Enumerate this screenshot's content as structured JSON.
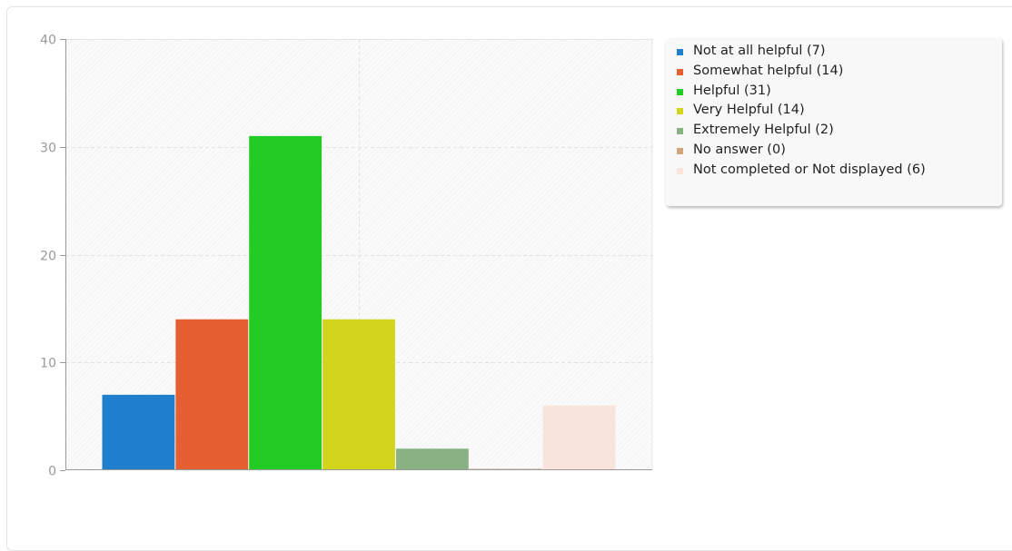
{
  "chart_data": {
    "type": "bar",
    "categories": [
      "Not at all helpful",
      "Somewhat helpful",
      "Helpful",
      "Very Helpful",
      "Extremely Helpful",
      "No answer",
      "Not completed or Not displayed"
    ],
    "values": [
      7,
      14,
      31,
      14,
      2,
      0,
      6
    ],
    "colors": [
      "#1f7fcc",
      "#e65f32",
      "#22cc22",
      "#d3d51c",
      "#88b283",
      "#d0a57d",
      "#f9e4dd"
    ],
    "legend_labels": [
      "Not at all helpful (7)",
      "Somewhat helpful (14)",
      "Helpful (31)",
      "Very Helpful (14)",
      "Extremely Helpful (2)",
      "No answer (0)",
      "Not completed or Not displayed (6)"
    ],
    "yticks": [
      "0",
      "10",
      "20",
      "30",
      "40"
    ],
    "ylim": [
      0,
      40
    ],
    "grid": true,
    "legend_position": "right",
    "title": "",
    "xlabel": "",
    "ylabel": ""
  }
}
